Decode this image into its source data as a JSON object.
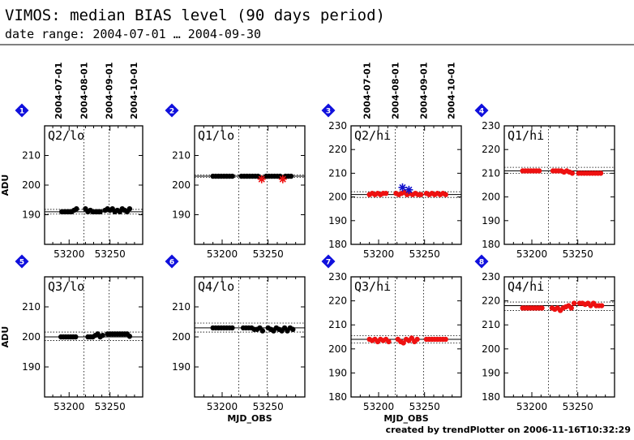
{
  "header": {
    "title": "VIMOS: median BIAS level (90 days period)",
    "subtitle": "date range: 2004-07-01 … 2004-09-30",
    "footer": "created by trendPlotter on 2006-11-16T10:32:29"
  },
  "colors": {
    "lo_points": "#000000",
    "hi_points": "#ee1111",
    "outlier_star": "#1111cc",
    "badge": "#1010dd"
  },
  "chart_data": [
    {
      "type": "scatter",
      "panel": "1",
      "label": "Q2/lo",
      "ylabel": "ADU",
      "xlabel": "",
      "xlim": [
        53170,
        53290
      ],
      "ylim": [
        180,
        220
      ],
      "yticks": [
        190,
        200,
        210
      ],
      "xticks": [
        53200,
        53250
      ],
      "date_ticks": [
        "2004-07-01",
        "2004-08-01",
        "2004-09-01",
        "2004-10-01"
      ],
      "ref_line": 191,
      "band": [
        190.2,
        191.8
      ],
      "series": [
        {
          "points": [
            [
              53191,
              191
            ],
            [
              53194,
              191
            ],
            [
              53197,
              191
            ],
            [
              53200,
              191
            ],
            [
              53203,
              191
            ],
            [
              53206,
              191.5
            ],
            [
              53209,
              192
            ],
            [
              53220,
              192
            ],
            [
              53223,
              191
            ],
            [
              53226,
              191.5
            ],
            [
              53229,
              191
            ],
            [
              53232,
              191
            ],
            [
              53235,
              191
            ],
            [
              53238,
              191
            ],
            [
              53244,
              191.5
            ],
            [
              53247,
              192
            ],
            [
              53250,
              191.5
            ],
            [
              53253,
              192
            ],
            [
              53256,
              191
            ],
            [
              53259,
              191.5
            ],
            [
              53262,
              191
            ],
            [
              53265,
              192
            ],
            [
              53268,
              191.5
            ],
            [
              53271,
              191
            ],
            [
              53274,
              192
            ]
          ],
          "stars": []
        }
      ]
    },
    {
      "type": "scatter",
      "panel": "2",
      "label": "Q1/lo",
      "ylabel": "",
      "xlabel": "",
      "xlim": [
        53170,
        53290
      ],
      "ylim": [
        180,
        220
      ],
      "yticks": [
        190,
        200,
        210
      ],
      "xticks": [
        53200,
        53250
      ],
      "date_ticks": [],
      "ref_line": 203,
      "band": [
        202.6,
        203.4
      ],
      "series": [
        {
          "points": [
            [
              53190,
              203
            ],
            [
              53193,
              203
            ],
            [
              53196,
              203
            ],
            [
              53199,
              203
            ],
            [
              53202,
              203
            ],
            [
              53205,
              203
            ],
            [
              53208,
              203
            ],
            [
              53211,
              203
            ],
            [
              53221,
              203
            ],
            [
              53224,
              203
            ],
            [
              53227,
              203
            ],
            [
              53230,
              203
            ],
            [
              53233,
              203
            ],
            [
              53236,
              203
            ],
            [
              53239,
              203
            ],
            [
              53243,
              202.3
            ],
            [
              53248,
              203
            ],
            [
              53251,
              203
            ],
            [
              53254,
              203
            ],
            [
              53257,
              203
            ],
            [
              53260,
              203
            ],
            [
              53263,
              203
            ],
            [
              53266,
              202.6
            ],
            [
              53269,
              203
            ],
            [
              53272,
              203
            ],
            [
              53275,
              203
            ]
          ],
          "stars": [
            [
              53243,
              202
            ],
            [
              53266,
              202
            ]
          ]
        }
      ]
    },
    {
      "type": "scatter",
      "panel": "3",
      "label": "Q2/hi",
      "ylabel": "",
      "xlabel": "",
      "xlim": [
        53170,
        53290
      ],
      "ylim": [
        180,
        230
      ],
      "yticks": [
        180,
        190,
        200,
        210,
        220,
        230
      ],
      "xticks": [
        53200,
        53250
      ],
      "date_ticks": [
        "2004-07-01",
        "2004-08-01",
        "2004-09-01",
        "2004-10-01"
      ],
      "ref_line": 201,
      "band": [
        199.8,
        202.2
      ],
      "series": [
        {
          "points": [
            [
              53190,
              201
            ],
            [
              53193,
              201.5
            ],
            [
              53196,
              201
            ],
            [
              53199,
              201.5
            ],
            [
              53202,
              201
            ],
            [
              53205,
              201.5
            ],
            [
              53208,
              201.5
            ],
            [
              53219,
              201.5
            ],
            [
              53222,
              201
            ],
            [
              53225,
              201.5
            ],
            [
              53228,
              202
            ],
            [
              53231,
              201
            ],
            [
              53234,
              201.5
            ],
            [
              53237,
              201
            ],
            [
              53240,
              201.5
            ],
            [
              53243,
              201
            ],
            [
              53246,
              201
            ],
            [
              53252,
              201.5
            ],
            [
              53255,
              201
            ],
            [
              53258,
              201.5
            ],
            [
              53261,
              201
            ],
            [
              53264,
              201.5
            ],
            [
              53267,
              201
            ],
            [
              53270,
              201.5
            ],
            [
              53273,
              201
            ]
          ],
          "stars": [
            [
              53226,
              204
            ],
            [
              53233,
              203
            ]
          ]
        }
      ]
    },
    {
      "type": "scatter",
      "panel": "4",
      "label": "Q1/hi",
      "ylabel": "",
      "xlabel": "",
      "xlim": [
        53170,
        53290
      ],
      "ylim": [
        180,
        230
      ],
      "yticks": [
        180,
        190,
        200,
        210,
        220,
        230
      ],
      "xticks": [
        53200,
        53250
      ],
      "date_ticks": [],
      "ref_line": 211,
      "band": [
        210,
        212.5
      ],
      "series": [
        {
          "points": [
            [
              53190,
              211
            ],
            [
              53193,
              211
            ],
            [
              53196,
              211
            ],
            [
              53199,
              211
            ],
            [
              53202,
              211
            ],
            [
              53205,
              211
            ],
            [
              53208,
              211
            ],
            [
              53223,
              211
            ],
            [
              53226,
              211
            ],
            [
              53229,
              211
            ],
            [
              53232,
              211
            ],
            [
              53235,
              210.5
            ],
            [
              53238,
              211
            ],
            [
              53241,
              210.5
            ],
            [
              53244,
              210
            ],
            [
              53251,
              210
            ],
            [
              53254,
              210
            ],
            [
              53257,
              210
            ],
            [
              53260,
              210
            ],
            [
              53263,
              210
            ],
            [
              53266,
              210
            ],
            [
              53269,
              210
            ],
            [
              53272,
              210
            ],
            [
              53275,
              210
            ]
          ],
          "stars": []
        }
      ]
    },
    {
      "type": "scatter",
      "panel": "5",
      "label": "Q3/lo",
      "ylabel": "ADU",
      "xlabel": "",
      "xlim": [
        53170,
        53290
      ],
      "ylim": [
        180,
        220
      ],
      "yticks": [
        190,
        200,
        210
      ],
      "xticks": [
        53200,
        53250
      ],
      "date_ticks": [],
      "ref_line": 200,
      "band": [
        198.8,
        201.6
      ],
      "series": [
        {
          "points": [
            [
              53190,
              200
            ],
            [
              53193,
              200
            ],
            [
              53196,
              200
            ],
            [
              53199,
              200
            ],
            [
              53202,
              200
            ],
            [
              53205,
              200
            ],
            [
              53208,
              200
            ],
            [
              53223,
              200
            ],
            [
              53226,
              200
            ],
            [
              53229,
              200
            ],
            [
              53232,
              200.5
            ],
            [
              53235,
              201
            ],
            [
              53238,
              200
            ],
            [
              53241,
              200.5
            ],
            [
              53247,
              201
            ],
            [
              53250,
              201
            ],
            [
              53253,
              201
            ],
            [
              53256,
              201
            ],
            [
              53259,
              201
            ],
            [
              53262,
              201
            ],
            [
              53265,
              201
            ],
            [
              53268,
              201
            ],
            [
              53271,
              201
            ],
            [
              53274,
              200.2
            ]
          ],
          "stars": []
        }
      ]
    },
    {
      "type": "scatter",
      "panel": "6",
      "label": "Q4/lo",
      "ylabel": "",
      "xlabel": "MJD_OBS",
      "xlim": [
        53170,
        53290
      ],
      "ylim": [
        180,
        220
      ],
      "yticks": [
        190,
        200,
        210
      ],
      "xticks": [
        53200,
        53250
      ],
      "date_ticks": [],
      "ref_line": 203,
      "band": [
        201.6,
        204.6
      ],
      "series": [
        {
          "points": [
            [
              53190,
              203
            ],
            [
              53193,
              203
            ],
            [
              53196,
              203
            ],
            [
              53199,
              203
            ],
            [
              53202,
              203
            ],
            [
              53205,
              203
            ],
            [
              53208,
              203
            ],
            [
              53211,
              203
            ],
            [
              53223,
              203
            ],
            [
              53226,
              203
            ],
            [
              53229,
              203
            ],
            [
              53232,
              203
            ],
            [
              53235,
              202.5
            ],
            [
              53238,
              202.5
            ],
            [
              53241,
              203
            ],
            [
              53244,
              202
            ],
            [
              53250,
              203
            ],
            [
              53253,
              202.5
            ],
            [
              53256,
              202
            ],
            [
              53259,
              203
            ],
            [
              53262,
              202.5
            ],
            [
              53265,
              202
            ],
            [
              53268,
              203
            ],
            [
              53271,
              202
            ],
            [
              53274,
              203
            ],
            [
              53277,
              202.5
            ]
          ],
          "stars": []
        }
      ]
    },
    {
      "type": "scatter",
      "panel": "7",
      "label": "Q3/hi",
      "ylabel": "",
      "xlabel": "MJD_OBS",
      "xlim": [
        53170,
        53290
      ],
      "ylim": [
        180,
        230
      ],
      "yticks": [
        180,
        190,
        200,
        210,
        220,
        230
      ],
      "xticks": [
        53200,
        53250
      ],
      "date_ticks": [],
      "ref_line": 204,
      "band": [
        202.5,
        205.5
      ],
      "series": [
        {
          "points": [
            [
              53190,
              204
            ],
            [
              53193,
              203.5
            ],
            [
              53196,
              204
            ],
            [
              53199,
              203
            ],
            [
              53202,
              204
            ],
            [
              53205,
              203.5
            ],
            [
              53208,
              204
            ],
            [
              53211,
              203
            ],
            [
              53221,
              204
            ],
            [
              53224,
              203
            ],
            [
              53227,
              202.5
            ],
            [
              53230,
              204
            ],
            [
              53233,
              203.5
            ],
            [
              53236,
              204.5
            ],
            [
              53239,
              203
            ],
            [
              53242,
              204
            ],
            [
              53252,
              204
            ],
            [
              53255,
              204
            ],
            [
              53258,
              204
            ],
            [
              53261,
              204
            ],
            [
              53264,
              204
            ],
            [
              53267,
              204
            ],
            [
              53270,
              204
            ],
            [
              53273,
              204
            ]
          ],
          "stars": []
        }
      ]
    },
    {
      "type": "scatter",
      "panel": "8",
      "label": "Q4/hi",
      "ylabel": "",
      "xlabel": "",
      "xlim": [
        53170,
        53290
      ],
      "ylim": [
        180,
        230
      ],
      "yticks": [
        180,
        190,
        200,
        210,
        220,
        230
      ],
      "xticks": [
        53200,
        53250
      ],
      "date_ticks": [],
      "ref_line": 218,
      "band": [
        216,
        219.5
      ],
      "series": [
        {
          "points": [
            [
              53190,
              217
            ],
            [
              53193,
              217
            ],
            [
              53196,
              217
            ],
            [
              53199,
              217
            ],
            [
              53202,
              217
            ],
            [
              53205,
              217
            ],
            [
              53208,
              217
            ],
            [
              53211,
              217
            ],
            [
              53222,
              217
            ],
            [
              53225,
              216.5
            ],
            [
              53228,
              217
            ],
            [
              53231,
              216
            ],
            [
              53234,
              217
            ],
            [
              53237,
              217.5
            ],
            [
              53240,
              218
            ],
            [
              53243,
              217
            ],
            [
              53246,
              219
            ],
            [
              53252,
              219
            ],
            [
              53255,
              219
            ],
            [
              53258,
              218.5
            ],
            [
              53261,
              219
            ],
            [
              53264,
              218
            ],
            [
              53267,
              219
            ],
            [
              53270,
              218
            ],
            [
              53273,
              218
            ],
            [
              53276,
              218
            ]
          ],
          "stars": []
        }
      ]
    }
  ]
}
